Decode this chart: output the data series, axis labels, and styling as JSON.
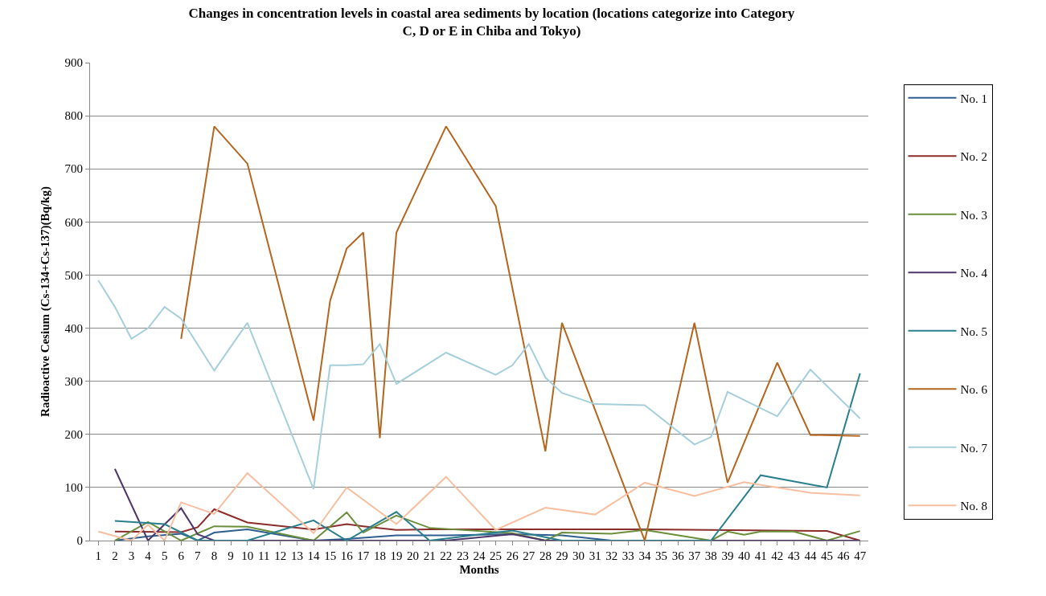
{
  "chart_data": {
    "type": "line",
    "title": "Changes in concentration levels in coastal area sediments by location (locations categorize into Category C, D or E in Chiba and Tokyo)",
    "xlabel": "Months",
    "ylabel": "Radioactive Cesium (Cs-134+Cs-137)(Bq/kg)",
    "xlim": [
      0.5,
      47.5
    ],
    "xticks": [
      1,
      2,
      3,
      4,
      5,
      6,
      7,
      8,
      9,
      10,
      11,
      12,
      13,
      14,
      15,
      16,
      17,
      18,
      19,
      20,
      21,
      22,
      23,
      24,
      25,
      26,
      27,
      28,
      29,
      30,
      31,
      32,
      33,
      34,
      35,
      36,
      37,
      38,
      39,
      40,
      41,
      42,
      43,
      44,
      45,
      46,
      47
    ],
    "ylim": [
      0,
      900
    ],
    "yticks": [
      0,
      100,
      200,
      300,
      400,
      500,
      600,
      700,
      800,
      900
    ],
    "grid": "y",
    "legend": "right",
    "marker": "none",
    "line_style": "solid",
    "series": [
      {
        "name": "No. 1",
        "color": "#2e5f8e",
        "x": [
          2,
          4,
          6,
          7,
          8,
          10,
          14,
          16,
          19,
          22,
          26,
          29,
          32,
          47
        ],
        "values": [
          0,
          8,
          13,
          0,
          15,
          21,
          0,
          3,
          10,
          10,
          12,
          10,
          0,
          0
        ]
      },
      {
        "name": "No. 2",
        "color": "#8b2d2a",
        "x": [
          2,
          6,
          7,
          8,
          10,
          14,
          16,
          17,
          19,
          21,
          34,
          45,
          47
        ],
        "values": [
          17,
          16,
          25,
          59,
          34,
          21,
          31,
          27,
          20,
          21,
          21,
          18,
          0
        ]
      },
      {
        "name": "No. 3",
        "color": "#6a8e3a",
        "x": [
          2,
          4,
          6,
          8,
          10,
          14,
          16,
          17,
          19,
          21,
          26,
          28,
          29,
          32,
          34,
          38,
          39,
          40,
          41,
          43,
          45,
          47
        ],
        "values": [
          0,
          35,
          0,
          27,
          26,
          0,
          53,
          15,
          47,
          24,
          14,
          0,
          15,
          13,
          20,
          0,
          17,
          11,
          17,
          17,
          0,
          18
        ]
      },
      {
        "name": "No. 4",
        "color": "#4f3669",
        "x": [
          2,
          4,
          6,
          7,
          8,
          22,
          26,
          28,
          47
        ],
        "values": [
          135,
          0,
          61,
          12,
          0,
          0,
          12,
          0,
          0
        ]
      },
      {
        "name": "No. 5",
        "color": "#2a7f8f",
        "x": [
          2,
          5,
          7,
          10,
          14,
          16,
          19,
          21,
          26,
          29,
          38,
          41,
          45,
          47
        ],
        "values": [
          37,
          31,
          0,
          0,
          38,
          0,
          54,
          0,
          19,
          0,
          0,
          123,
          100,
          315
        ]
      },
      {
        "name": "No. 6",
        "color": "#b5651d",
        "x": [
          6,
          8,
          10,
          14,
          15,
          16,
          17,
          18,
          19,
          22,
          25,
          28,
          29,
          34,
          37,
          39,
          42,
          44,
          47
        ],
        "values": [
          380,
          780,
          710,
          226,
          452,
          550,
          580,
          193,
          580,
          780,
          630,
          168,
          410,
          0,
          410,
          109,
          335,
          199,
          197
        ]
      },
      {
        "name": "No. 7",
        "color": "#a6cfdc",
        "x": [
          1,
          2,
          3,
          4,
          5,
          6,
          8,
          10,
          14,
          15,
          16,
          17,
          18,
          19,
          22,
          25,
          26,
          27,
          28,
          29,
          31,
          34,
          37,
          38,
          39,
          42,
          44,
          47
        ],
        "values": [
          490,
          440,
          380,
          400,
          440,
          418,
          320,
          410,
          97,
          330,
          330,
          332,
          370,
          295,
          354,
          312,
          330,
          370,
          307,
          278,
          257,
          255,
          181,
          195,
          280,
          234,
          322,
          230
        ]
      },
      {
        "name": "No. 8",
        "color": "#f7bfa0",
        "x": [
          1,
          3,
          4,
          5,
          6,
          8,
          10,
          14,
          16,
          19,
          22,
          25,
          28,
          31,
          34,
          37,
          40,
          44,
          47
        ],
        "values": [
          17,
          0,
          30,
          0,
          72,
          50,
          127,
          14,
          100,
          31,
          120,
          20,
          62,
          49,
          109,
          84,
          110,
          90,
          85
        ]
      }
    ]
  }
}
